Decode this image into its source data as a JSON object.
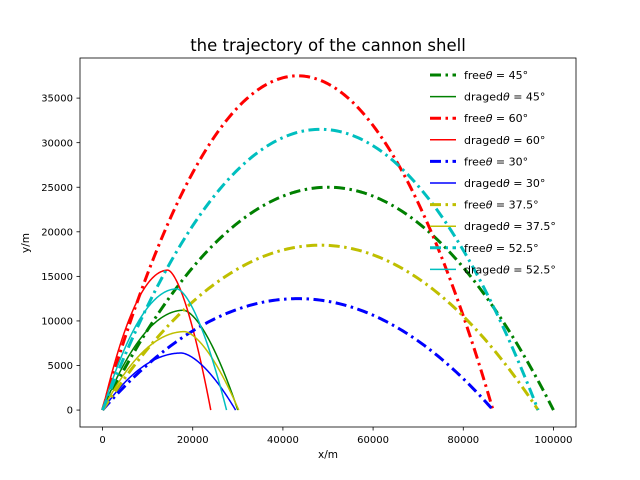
{
  "chart_data": {
    "type": "line",
    "title": "the trajectory of the cannon shell",
    "xlabel": "x/m",
    "ylabel": "y/m",
    "xlim": [
      -5000,
      105000
    ],
    "ylim": [
      -1900,
      39500
    ],
    "xticks": [
      0,
      20000,
      40000,
      60000,
      80000,
      100000
    ],
    "yticks": [
      0,
      5000,
      10000,
      15000,
      20000,
      25000,
      30000,
      35000
    ],
    "grid": false,
    "legend_position": "top-right",
    "series": [
      {
        "name": "freeθ = 45°",
        "legend_text": "free",
        "theta_text": "45",
        "color": "#008000",
        "dash": "dashdot",
        "width": 3,
        "theta": 45,
        "range": 100000,
        "peak": 25000
      },
      {
        "name": "dragedθ = 45°",
        "legend_text": "draged",
        "theta_text": "45",
        "color": "#008000",
        "dash": "solid",
        "width": 1.5,
        "theta": 45,
        "range": 30000,
        "peak": 11200,
        "peak_x": 18000
      },
      {
        "name": "freeθ = 60°",
        "legend_text": "free",
        "theta_text": "60",
        "color": "#ff0000",
        "dash": "dashdot",
        "width": 3,
        "theta": 60,
        "range": 86600,
        "peak": 37500
      },
      {
        "name": "dragedθ = 60°",
        "legend_text": "draged",
        "theta_text": "60",
        "color": "#ff0000",
        "dash": "solid",
        "width": 1.5,
        "theta": 60,
        "range": 24000,
        "peak": 15700,
        "peak_x": 14500
      },
      {
        "name": "freeθ = 30°",
        "legend_text": "free",
        "theta_text": "30",
        "color": "#0000ff",
        "dash": "dashdot",
        "width": 3,
        "theta": 30,
        "range": 86600,
        "peak": 12500
      },
      {
        "name": "dragedθ = 30°",
        "legend_text": "draged",
        "theta_text": "30",
        "color": "#0000ff",
        "dash": "solid",
        "width": 1.5,
        "theta": 30,
        "range": 29500,
        "peak": 6400,
        "peak_x": 17500
      },
      {
        "name": "freeθ = 37.5°",
        "legend_text": "free",
        "theta_text": "37.5",
        "color": "#bfbf00",
        "dash": "dashdot",
        "width": 3,
        "theta": 37.5,
        "range": 96600,
        "peak": 18500
      },
      {
        "name": "dragedθ = 37.5°",
        "legend_text": "draged",
        "theta_text": "37.5",
        "color": "#bfbf00",
        "dash": "solid",
        "width": 1.5,
        "theta": 37.5,
        "range": 30200,
        "peak": 8800,
        "peak_x": 18200
      },
      {
        "name": "freeθ = 52.5°",
        "legend_text": "free",
        "theta_text": "52.5",
        "color": "#00bfbf",
        "dash": "dashdot",
        "width": 3,
        "theta": 52.5,
        "range": 96600,
        "peak": 31500
      },
      {
        "name": "dragedθ = 52.5°",
        "legend_text": "draged",
        "theta_text": "52.5",
        "color": "#00bfbf",
        "dash": "solid",
        "width": 1.5,
        "theta": 52.5,
        "range": 27500,
        "peak": 13600,
        "peak_x": 16500
      }
    ]
  }
}
